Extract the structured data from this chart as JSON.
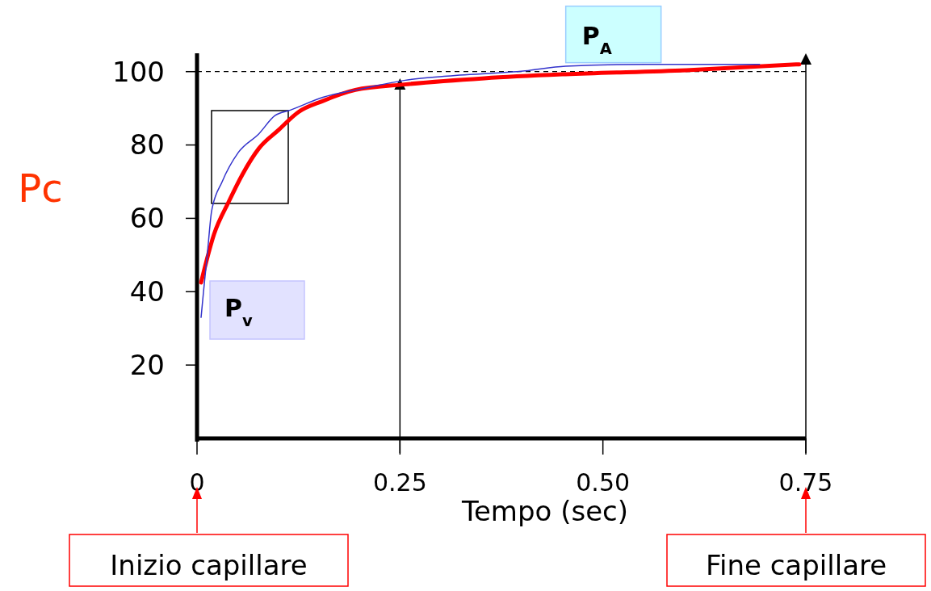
{
  "chart_data": {
    "type": "line",
    "xlabel": "Tempo (sec)",
    "ylabel": "Pc",
    "xlim": [
      0,
      0.75
    ],
    "ylim": [
      0,
      105
    ],
    "xticks": [
      0,
      0.25,
      {
        "value": 0.5,
        "label": "0.50"
      },
      0.75
    ],
    "yticks": [
      20,
      40,
      60,
      80,
      100
    ],
    "grid": false,
    "marker": "none",
    "line_style": "solid",
    "series": [
      {
        "color": "#3333cc",
        "x": [
          0.005,
          0.008,
          0.013,
          0.018,
          0.031,
          0.051,
          0.076,
          0.096,
          0.115,
          0.155,
          0.205,
          0.255,
          0.304,
          0.404,
          0.454,
          0.553,
          0.693
        ],
        "values": [
          33,
          40,
          51,
          62,
          70,
          78,
          83,
          88,
          89.5,
          93,
          95.4,
          97.6,
          98.7,
          100.2,
          101.5,
          102,
          102
        ]
      },
      {
        "color": "#ff0000",
        "x": [
          0.005,
          0.021,
          0.039,
          0.056,
          0.076,
          0.1,
          0.125,
          0.155,
          0.195,
          0.255,
          0.354,
          0.454,
          0.603,
          0.742
        ],
        "values": [
          42.5,
          55.7,
          64.5,
          72,
          79,
          84,
          89,
          92,
          95,
          96.5,
          98.2,
          99.3,
          100.4,
          102
        ]
      }
    ],
    "ref_lines": [
      {
        "axis": "y",
        "value": 100,
        "line_style": "dashed",
        "color": "#000000"
      },
      {
        "axis": "x",
        "value": 0.25,
        "color": "#000000"
      },
      {
        "axis": "x",
        "value": 0.75,
        "color": "#000000"
      }
    ],
    "annotations": [
      {
        "text": "P$_{A}$",
        "x": 0.5,
        "y": 102
      },
      "P$_{v}$",
      "Inizio capillare",
      "Fine capillare"
    ]
  }
}
